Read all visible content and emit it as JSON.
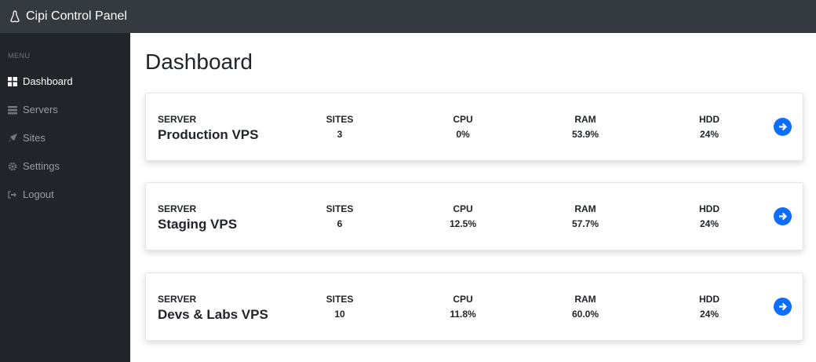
{
  "app": {
    "title": "Cipi Control Panel"
  },
  "sidebar": {
    "heading": "MENU",
    "items": [
      {
        "label": "Dashboard",
        "icon": "grid-icon",
        "active": true
      },
      {
        "label": "Servers",
        "icon": "server-icon"
      },
      {
        "label": "Sites",
        "icon": "rocket-icon"
      },
      {
        "label": "Settings",
        "icon": "gear-icon"
      },
      {
        "label": "Logout",
        "icon": "logout-icon"
      }
    ]
  },
  "main": {
    "title": "Dashboard",
    "labels": {
      "server": "SERVER",
      "sites": "SITES",
      "cpu": "CPU",
      "ram": "RAM",
      "hdd": "HDD"
    },
    "servers": [
      {
        "name": "Production VPS",
        "sites": "3",
        "cpu": "0%",
        "ram": "53.9%",
        "hdd": "24%"
      },
      {
        "name": "Staging VPS",
        "sites": "6",
        "cpu": "12.5%",
        "ram": "57.7%",
        "hdd": "24%"
      },
      {
        "name": "Devs & Labs VPS",
        "sites": "10",
        "cpu": "11.8%",
        "ram": "60.0%",
        "hdd": "24%"
      }
    ]
  },
  "colors": {
    "accent": "#0d6efd",
    "topbar": "#343a40",
    "sidebar": "#212529"
  }
}
